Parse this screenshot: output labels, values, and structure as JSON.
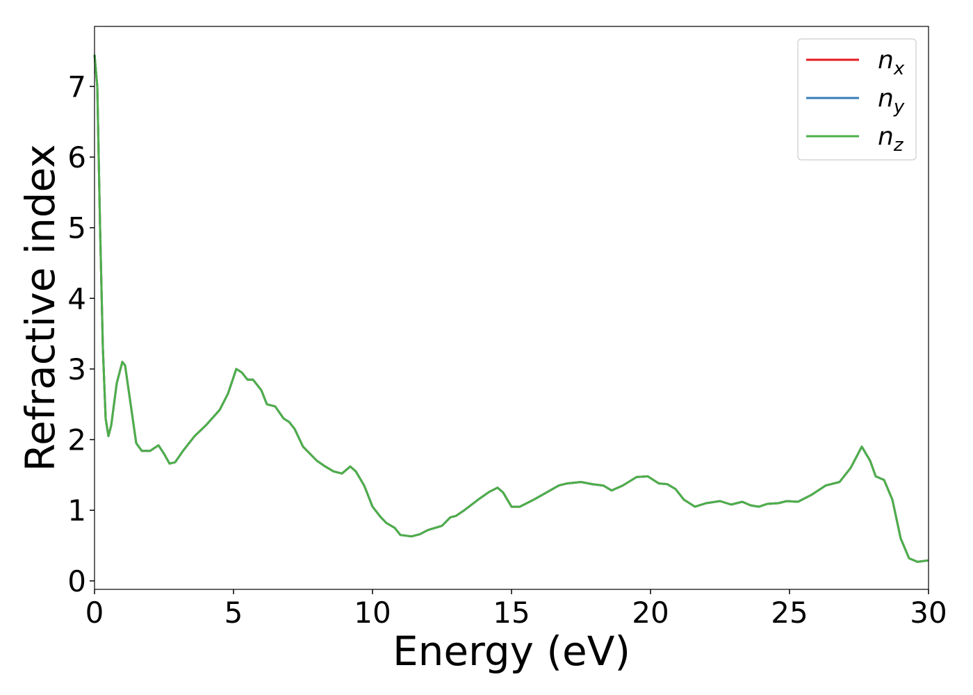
{
  "chart_data": {
    "type": "line",
    "xlabel": "Energy (eV)",
    "ylabel": "Refractive index",
    "x": [
      0,
      0.1,
      0.2,
      0.3,
      0.4,
      0.5,
      0.6,
      0.8,
      1.0,
      1.1,
      1.3,
      1.5,
      1.7,
      2.0,
      2.3,
      2.5,
      2.7,
      2.9,
      3.2,
      3.6,
      4.0,
      4.5,
      4.8,
      5.1,
      5.3,
      5.5,
      5.7,
      6.0,
      6.2,
      6.5,
      6.8,
      7.0,
      7.2,
      7.5,
      8.0,
      8.3,
      8.6,
      8.9,
      9.2,
      9.4,
      9.7,
      10.0,
      10.3,
      10.5,
      10.8,
      11.0,
      11.4,
      11.7,
      12.0,
      12.5,
      12.8,
      13.0,
      13.3,
      13.8,
      14.2,
      14.5,
      14.7,
      15.0,
      15.3,
      15.8,
      16.3,
      16.7,
      17.0,
      17.5,
      17.9,
      18.3,
      18.6,
      19.0,
      19.5,
      19.9,
      20.3,
      20.6,
      20.9,
      21.2,
      21.6,
      22.0,
      22.5,
      22.9,
      23.3,
      23.6,
      23.9,
      24.2,
      24.6,
      24.9,
      25.3,
      25.8,
      26.3,
      26.8,
      27.2,
      27.6,
      27.9,
      28.1,
      28.4,
      28.7,
      29.0,
      29.3,
      29.6,
      30.0
    ],
    "series": [
      {
        "name": "n_x",
        "color": "#e41a1c",
        "values": [
          7.45,
          7.0,
          5.0,
          3.3,
          2.3,
          2.05,
          2.2,
          2.8,
          3.1,
          3.05,
          2.5,
          1.95,
          1.84,
          1.84,
          1.92,
          1.8,
          1.66,
          1.68,
          1.85,
          2.05,
          2.2,
          2.42,
          2.65,
          3.0,
          2.95,
          2.85,
          2.85,
          2.7,
          2.5,
          2.47,
          2.3,
          2.25,
          2.15,
          1.9,
          1.7,
          1.62,
          1.55,
          1.52,
          1.62,
          1.55,
          1.35,
          1.05,
          0.9,
          0.82,
          0.75,
          0.65,
          0.63,
          0.66,
          0.72,
          0.78,
          0.9,
          0.92,
          1.0,
          1.15,
          1.26,
          1.32,
          1.25,
          1.05,
          1.05,
          1.15,
          1.26,
          1.35,
          1.38,
          1.4,
          1.37,
          1.35,
          1.28,
          1.35,
          1.47,
          1.48,
          1.38,
          1.37,
          1.3,
          1.15,
          1.05,
          1.1,
          1.13,
          1.08,
          1.12,
          1.07,
          1.05,
          1.09,
          1.1,
          1.13,
          1.12,
          1.22,
          1.35,
          1.4,
          1.6,
          1.9,
          1.7,
          1.48,
          1.43,
          1.15,
          0.6,
          0.32,
          0.27,
          0.29
        ]
      },
      {
        "name": "n_y",
        "color": "#377eb8",
        "values": [
          7.45,
          7.0,
          5.0,
          3.3,
          2.3,
          2.05,
          2.2,
          2.8,
          3.1,
          3.05,
          2.5,
          1.95,
          1.84,
          1.84,
          1.92,
          1.8,
          1.66,
          1.68,
          1.85,
          2.05,
          2.2,
          2.42,
          2.65,
          3.0,
          2.95,
          2.85,
          2.85,
          2.7,
          2.5,
          2.47,
          2.3,
          2.25,
          2.15,
          1.9,
          1.7,
          1.62,
          1.55,
          1.52,
          1.62,
          1.55,
          1.35,
          1.05,
          0.9,
          0.82,
          0.75,
          0.65,
          0.63,
          0.66,
          0.72,
          0.78,
          0.9,
          0.92,
          1.0,
          1.15,
          1.26,
          1.32,
          1.25,
          1.05,
          1.05,
          1.15,
          1.26,
          1.35,
          1.38,
          1.4,
          1.37,
          1.35,
          1.28,
          1.35,
          1.47,
          1.48,
          1.38,
          1.37,
          1.3,
          1.15,
          1.05,
          1.1,
          1.13,
          1.08,
          1.12,
          1.07,
          1.05,
          1.09,
          1.1,
          1.13,
          1.12,
          1.22,
          1.35,
          1.4,
          1.6,
          1.9,
          1.7,
          1.48,
          1.43,
          1.15,
          0.6,
          0.32,
          0.27,
          0.29
        ]
      },
      {
        "name": "n_z",
        "color": "#4daf4a",
        "values": [
          7.45,
          7.0,
          5.0,
          3.3,
          2.3,
          2.05,
          2.2,
          2.8,
          3.1,
          3.05,
          2.5,
          1.95,
          1.84,
          1.84,
          1.92,
          1.8,
          1.66,
          1.68,
          1.85,
          2.05,
          2.2,
          2.42,
          2.65,
          3.0,
          2.95,
          2.85,
          2.85,
          2.7,
          2.5,
          2.47,
          2.3,
          2.25,
          2.15,
          1.9,
          1.7,
          1.62,
          1.55,
          1.52,
          1.62,
          1.55,
          1.35,
          1.05,
          0.9,
          0.82,
          0.75,
          0.65,
          0.63,
          0.66,
          0.72,
          0.78,
          0.9,
          0.92,
          1.0,
          1.15,
          1.26,
          1.32,
          1.25,
          1.05,
          1.05,
          1.15,
          1.26,
          1.35,
          1.38,
          1.4,
          1.37,
          1.35,
          1.28,
          1.35,
          1.47,
          1.48,
          1.38,
          1.37,
          1.3,
          1.15,
          1.05,
          1.1,
          1.13,
          1.08,
          1.12,
          1.07,
          1.05,
          1.09,
          1.1,
          1.13,
          1.12,
          1.22,
          1.35,
          1.4,
          1.6,
          1.9,
          1.7,
          1.48,
          1.43,
          1.15,
          0.6,
          0.32,
          0.27,
          0.29
        ]
      }
    ],
    "xlim": [
      0,
      30
    ],
    "xticks": [
      0,
      5,
      10,
      15,
      20,
      25,
      30
    ],
    "ylim": [
      -0.12,
      7.85
    ],
    "yticks": [
      0,
      1,
      2,
      3,
      4,
      5,
      6,
      7
    ],
    "grid": false,
    "legend": "upper right"
  }
}
